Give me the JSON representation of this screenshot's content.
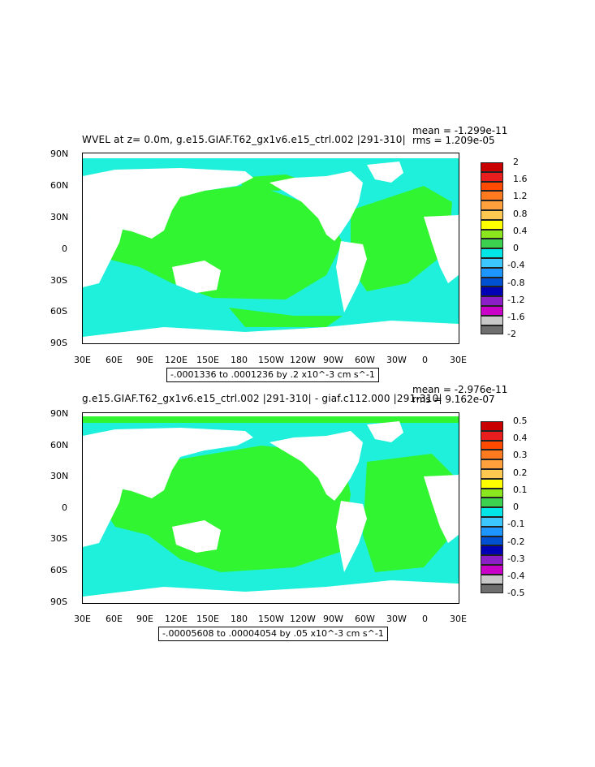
{
  "panels": [
    {
      "id": "top",
      "title": "WVEL at z=    0.0m, g.e15.GIAF.T62_gx1v6.e15_ctrl.002  |291-310|",
      "stats": {
        "mean": "mean = -1.299e-11",
        "rms": "rms = 1.209e-05"
      },
      "range_label": "-.0001336 to .0001236 by .2 x10^-3 cm s^-1",
      "colorbar": {
        "labels": [
          "2",
          "1.6",
          "1.2",
          "0.8",
          "0.4",
          "0",
          "-0.4",
          "-0.8",
          "-1.2",
          "-1.6",
          "-2"
        ],
        "colors": [
          "#c80000",
          "#e81e1e",
          "#ff4a00",
          "#ff7a1e",
          "#ffa03c",
          "#ffc850",
          "#ffff00",
          "#8ce61e",
          "#3cd250",
          "#00e6e6",
          "#3cc8ff",
          "#1e96ff",
          "#0050d2",
          "#0000b4",
          "#8c1ec8",
          "#c800c8",
          "#c8c8c8",
          "#6e6e6e"
        ]
      }
    },
    {
      "id": "bottom",
      "title": "g.e15.GIAF.T62_gx1v6.e15_ctrl.002  |291-310|  -  giaf.c112.000  |291-310|",
      "stats": {
        "mean": "mean = -2.976e-11",
        "rms": "rms = 9.162e-07"
      },
      "range_label": "-.00005608 to .00004054 by .05 x10^-3 cm s^-1",
      "colorbar": {
        "labels": [
          "0.5",
          "0.4",
          "0.3",
          "0.2",
          "0.1",
          "0",
          "-0.1",
          "-0.2",
          "-0.3",
          "-0.4",
          "-0.5"
        ],
        "colors": [
          "#c80000",
          "#e81e1e",
          "#ff4a00",
          "#ff7a1e",
          "#ffa03c",
          "#ffc850",
          "#ffff00",
          "#8ce61e",
          "#3cd250",
          "#00e6e6",
          "#3cc8ff",
          "#1e96ff",
          "#0050d2",
          "#0000b4",
          "#8c1ec8",
          "#c800c8",
          "#c8c8c8",
          "#6e6e6e"
        ]
      }
    }
  ],
  "axes": {
    "y_labels": [
      "90N",
      "60N",
      "30N",
      "0",
      "30S",
      "60S",
      "90S"
    ],
    "x_labels": [
      "30E",
      "60E",
      "90E",
      "120E",
      "150E",
      "180",
      "150W",
      "120W",
      "90W",
      "60W",
      "30W",
      "0",
      "30E"
    ]
  },
  "map_colors": {
    "land": "#ffffff",
    "positive": "#32f532",
    "negative": "#1ef0dc"
  }
}
